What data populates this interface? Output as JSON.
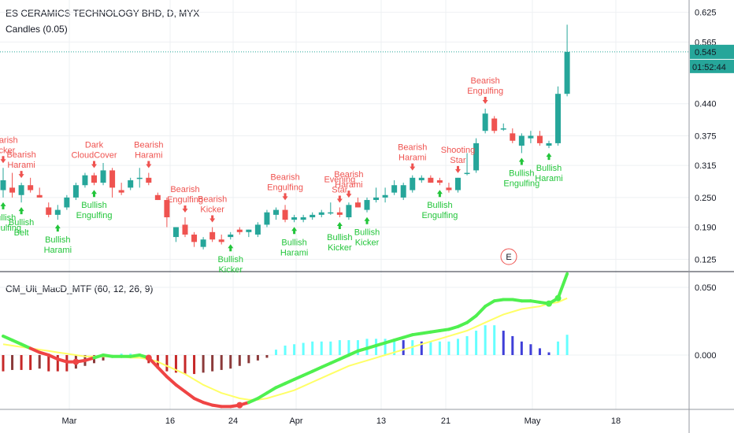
{
  "header": {
    "symbol_title": "ES CERAMICS TECHNOLOGY BHD, D, MYX",
    "study_candles": "Candles (0.05)",
    "study_macd": "CM_Ult_MacD_MTF (60, 12, 26, 9)"
  },
  "price_scale": {
    "ticks": [
      "0.625",
      "0.565",
      "0.440",
      "0.375",
      "0.315",
      "0.250",
      "0.190",
      "0.125"
    ],
    "last_price": "0.545",
    "countdown": "01:52:44"
  },
  "macd_scale": {
    "ticks": [
      "0.050",
      "0.000"
    ]
  },
  "time_axis": {
    "labels": [
      "Mar",
      "16",
      "24",
      "Apr",
      "13",
      "21",
      "May",
      "18"
    ]
  },
  "earnings_marker": "E",
  "colors": {
    "bull": "#26a69a",
    "bear": "#ef5350",
    "pattern_bull": "#22c53a",
    "pattern_bear": "#ef5350",
    "macd_up": "#4ff04f",
    "macd_down": "#ef4444",
    "signal": "#ffff66",
    "hist_cyan": "#66ffff",
    "hist_blue": "#3f3fd8",
    "hist_red": "#c62828",
    "hist_maroon": "#8b3a3a",
    "last_price": "#26a69a"
  },
  "chart_data": [
    {
      "type": "candlestick",
      "title": "ES CERAMICS TECHNOLOGY BHD, D, MYX",
      "ylim": [
        0.1,
        0.65
      ],
      "x_ticks": [
        "Mar",
        "16",
        "24",
        "Apr",
        "13",
        "21",
        "May",
        "18"
      ],
      "candles": [
        {
          "o": 0.265,
          "h": 0.31,
          "l": 0.25,
          "c": 0.285
        },
        {
          "o": 0.27,
          "h": 0.3,
          "l": 0.25,
          "c": 0.26
        },
        {
          "o": 0.255,
          "h": 0.28,
          "l": 0.24,
          "c": 0.275
        },
        {
          "o": 0.275,
          "h": 0.29,
          "l": 0.26,
          "c": 0.265
        },
        {
          "o": 0.255,
          "h": 0.27,
          "l": 0.25,
          "c": 0.25
        },
        {
          "o": 0.23,
          "h": 0.24,
          "l": 0.21,
          "c": 0.215
        },
        {
          "o": 0.215,
          "h": 0.235,
          "l": 0.205,
          "c": 0.225
        },
        {
          "o": 0.23,
          "h": 0.255,
          "l": 0.225,
          "c": 0.25
        },
        {
          "o": 0.25,
          "h": 0.28,
          "l": 0.245,
          "c": 0.275
        },
        {
          "o": 0.275,
          "h": 0.3,
          "l": 0.27,
          "c": 0.295
        },
        {
          "o": 0.295,
          "h": 0.3,
          "l": 0.275,
          "c": 0.28
        },
        {
          "o": 0.28,
          "h": 0.32,
          "l": 0.275,
          "c": 0.305
        },
        {
          "o": 0.305,
          "h": 0.31,
          "l": 0.25,
          "c": 0.27
        },
        {
          "o": 0.265,
          "h": 0.28,
          "l": 0.255,
          "c": 0.26
        },
        {
          "o": 0.27,
          "h": 0.29,
          "l": 0.265,
          "c": 0.285
        },
        {
          "o": 0.29,
          "h": 0.31,
          "l": 0.27,
          "c": 0.29
        },
        {
          "o": 0.29,
          "h": 0.3,
          "l": 0.275,
          "c": 0.28
        },
        {
          "o": 0.255,
          "h": 0.26,
          "l": 0.245,
          "c": 0.245
        },
        {
          "o": 0.245,
          "h": 0.25,
          "l": 0.19,
          "c": 0.21
        },
        {
          "o": 0.17,
          "h": 0.19,
          "l": 0.16,
          "c": 0.19
        },
        {
          "o": 0.195,
          "h": 0.21,
          "l": 0.17,
          "c": 0.175
        },
        {
          "o": 0.175,
          "h": 0.18,
          "l": 0.15,
          "c": 0.16
        },
        {
          "o": 0.15,
          "h": 0.17,
          "l": 0.145,
          "c": 0.165
        },
        {
          "o": 0.18,
          "h": 0.19,
          "l": 0.16,
          "c": 0.165
        },
        {
          "o": 0.165,
          "h": 0.175,
          "l": 0.155,
          "c": 0.16
        },
        {
          "o": 0.17,
          "h": 0.18,
          "l": 0.165,
          "c": 0.175
        },
        {
          "o": 0.185,
          "h": 0.19,
          "l": 0.175,
          "c": 0.18
        },
        {
          "o": 0.18,
          "h": 0.185,
          "l": 0.17,
          "c": 0.185
        },
        {
          "o": 0.175,
          "h": 0.2,
          "l": 0.17,
          "c": 0.195
        },
        {
          "o": 0.195,
          "h": 0.225,
          "l": 0.19,
          "c": 0.22
        },
        {
          "o": 0.215,
          "h": 0.23,
          "l": 0.205,
          "c": 0.225
        },
        {
          "o": 0.225,
          "h": 0.235,
          "l": 0.2,
          "c": 0.205
        },
        {
          "o": 0.205,
          "h": 0.215,
          "l": 0.2,
          "c": 0.21
        },
        {
          "o": 0.205,
          "h": 0.215,
          "l": 0.2,
          "c": 0.21
        },
        {
          "o": 0.21,
          "h": 0.22,
          "l": 0.205,
          "c": 0.215
        },
        {
          "o": 0.215,
          "h": 0.225,
          "l": 0.21,
          "c": 0.22
        },
        {
          "o": 0.22,
          "h": 0.24,
          "l": 0.215,
          "c": 0.22
        },
        {
          "o": 0.22,
          "h": 0.23,
          "l": 0.21,
          "c": 0.215
        },
        {
          "o": 0.21,
          "h": 0.24,
          "l": 0.205,
          "c": 0.235
        },
        {
          "o": 0.24,
          "h": 0.25,
          "l": 0.23,
          "c": 0.23
        },
        {
          "o": 0.225,
          "h": 0.25,
          "l": 0.22,
          "c": 0.245
        },
        {
          "o": 0.245,
          "h": 0.27,
          "l": 0.24,
          "c": 0.25
        },
        {
          "o": 0.25,
          "h": 0.27,
          "l": 0.24,
          "c": 0.255
        },
        {
          "o": 0.26,
          "h": 0.285,
          "l": 0.255,
          "c": 0.275
        },
        {
          "o": 0.25,
          "h": 0.28,
          "l": 0.245,
          "c": 0.275
        },
        {
          "o": 0.265,
          "h": 0.295,
          "l": 0.26,
          "c": 0.29
        },
        {
          "o": 0.285,
          "h": 0.295,
          "l": 0.28,
          "c": 0.29
        },
        {
          "o": 0.29,
          "h": 0.295,
          "l": 0.28,
          "c": 0.28
        },
        {
          "o": 0.285,
          "h": 0.29,
          "l": 0.275,
          "c": 0.28
        },
        {
          "o": 0.27,
          "h": 0.28,
          "l": 0.26,
          "c": 0.265
        },
        {
          "o": 0.265,
          "h": 0.29,
          "l": 0.26,
          "c": 0.29
        },
        {
          "o": 0.3,
          "h": 0.34,
          "l": 0.295,
          "c": 0.3
        },
        {
          "o": 0.305,
          "h": 0.37,
          "l": 0.3,
          "c": 0.36
        },
        {
          "o": 0.385,
          "h": 0.43,
          "l": 0.38,
          "c": 0.42
        },
        {
          "o": 0.41,
          "h": 0.415,
          "l": 0.38,
          "c": 0.385
        },
        {
          "o": 0.39,
          "h": 0.4,
          "l": 0.385,
          "c": 0.39
        },
        {
          "o": 0.38,
          "h": 0.39,
          "l": 0.36,
          "c": 0.365
        },
        {
          "o": 0.355,
          "h": 0.38,
          "l": 0.34,
          "c": 0.375
        },
        {
          "o": 0.37,
          "h": 0.385,
          "l": 0.36,
          "c": 0.375
        },
        {
          "o": 0.375,
          "h": 0.385,
          "l": 0.355,
          "c": 0.36
        },
        {
          "o": 0.355,
          "h": 0.365,
          "l": 0.35,
          "c": 0.36
        },
        {
          "o": 0.36,
          "h": 0.475,
          "l": 0.355,
          "c": 0.46
        },
        {
          "o": 0.46,
          "h": 0.6,
          "l": 0.455,
          "c": 0.545
        }
      ],
      "last_price": 0.545,
      "annotations": [
        {
          "i": 0,
          "side": "above",
          "text": [
            "Bearish",
            "Kicker"
          ],
          "kind": "bear"
        },
        {
          "i": 2,
          "side": "above",
          "text": [
            "Bearish",
            "Harami"
          ],
          "kind": "bear"
        },
        {
          "i": 0,
          "side": "below",
          "text": [
            "Bullish",
            "Engulfing"
          ],
          "kind": "bull"
        },
        {
          "i": 2,
          "side": "below",
          "text": [
            "Bullish",
            "Belt"
          ],
          "kind": "bull"
        },
        {
          "i": 6,
          "side": "below",
          "text": [
            "Bullish",
            "Harami"
          ],
          "kind": "bull"
        },
        {
          "i": 10,
          "side": "above",
          "text": [
            "Dark",
            "CloudCover"
          ],
          "kind": "bear"
        },
        {
          "i": 10,
          "side": "below",
          "text": [
            "Bullish",
            "Engulfing"
          ],
          "kind": "bull"
        },
        {
          "i": 16,
          "side": "above",
          "text": [
            "Bearish",
            "Harami"
          ],
          "kind": "bear"
        },
        {
          "i": 20,
          "side": "above",
          "text": [
            "Bearish",
            "Engulfing"
          ],
          "kind": "bear"
        },
        {
          "i": 23,
          "side": "above",
          "text": [
            "Bearish",
            "Kicker"
          ],
          "kind": "bear"
        },
        {
          "i": 25,
          "side": "below",
          "text": [
            "Bullish",
            "Kicker"
          ],
          "kind": "bull"
        },
        {
          "i": 31,
          "side": "above",
          "text": [
            "Bearish",
            "Engulfing"
          ],
          "kind": "bear"
        },
        {
          "i": 32,
          "side": "below",
          "text": [
            "Bullish",
            "Harami"
          ],
          "kind": "bull"
        },
        {
          "i": 37,
          "side": "above",
          "text": [
            "Evening",
            "Star"
          ],
          "kind": "bear"
        },
        {
          "i": 38,
          "side": "above",
          "text": [
            "Bearish",
            "Harami"
          ],
          "kind": "bear"
        },
        {
          "i": 37,
          "side": "below",
          "text": [
            "Bullish",
            "Kicker"
          ],
          "kind": "bull"
        },
        {
          "i": 40,
          "side": "below",
          "text": [
            "Bullish",
            "Kicker"
          ],
          "kind": "bull"
        },
        {
          "i": 45,
          "side": "above",
          "text": [
            "Bearish",
            "Harami"
          ],
          "kind": "bear"
        },
        {
          "i": 48,
          "side": "below",
          "text": [
            "Bullish",
            "Engulfing"
          ],
          "kind": "bull"
        },
        {
          "i": 50,
          "side": "above",
          "text": [
            "Shooting",
            "Star"
          ],
          "kind": "bear"
        },
        {
          "i": 53,
          "side": "above",
          "text": [
            "Bearish",
            "Engulfing"
          ],
          "kind": "bear"
        },
        {
          "i": 57,
          "side": "below",
          "text": [
            "Bullish",
            "Engulfing"
          ],
          "kind": "bull"
        },
        {
          "i": 60,
          "side": "below",
          "text": [
            "Bullish",
            "Harami"
          ],
          "kind": "bull"
        }
      ]
    },
    {
      "type": "line",
      "title": "CM_Ult_MacD_MTF (60, 12, 26, 9)",
      "ylim": [
        -0.045,
        0.068
      ],
      "x_ticks": [
        "Mar",
        "16",
        "24",
        "Apr",
        "13",
        "21",
        "May",
        "18"
      ],
      "macd": [
        0.014,
        0.011,
        0.008,
        0.005,
        0.002,
        0.0,
        -0.003,
        -0.005,
        -0.005,
        -0.004,
        -0.002,
        0.0,
        -0.001,
        -0.001,
        -0.001,
        0.0,
        -0.002,
        -0.009,
        -0.016,
        -0.022,
        -0.027,
        -0.032,
        -0.035,
        -0.037,
        -0.038,
        -0.038,
        -0.037,
        -0.035,
        -0.032,
        -0.028,
        -0.024,
        -0.021,
        -0.018,
        -0.015,
        -0.012,
        -0.009,
        -0.006,
        -0.003,
        0.0,
        0.003,
        0.005,
        0.007,
        0.009,
        0.011,
        0.013,
        0.015,
        0.016,
        0.017,
        0.018,
        0.019,
        0.021,
        0.024,
        0.029,
        0.036,
        0.04,
        0.041,
        0.041,
        0.04,
        0.04,
        0.039,
        0.038,
        0.042,
        0.06
      ],
      "signal": [
        0.008,
        0.007,
        0.006,
        0.005,
        0.004,
        0.003,
        0.002,
        0.001,
        0.0,
        -0.001,
        -0.001,
        -0.001,
        -0.001,
        -0.001,
        -0.002,
        -0.002,
        -0.003,
        -0.005,
        -0.008,
        -0.011,
        -0.014,
        -0.018,
        -0.022,
        -0.025,
        -0.028,
        -0.03,
        -0.032,
        -0.033,
        -0.033,
        -0.032,
        -0.03,
        -0.028,
        -0.026,
        -0.023,
        -0.02,
        -0.017,
        -0.014,
        -0.011,
        -0.008,
        -0.006,
        -0.004,
        -0.002,
        0.0,
        0.002,
        0.004,
        0.006,
        0.008,
        0.01,
        0.012,
        0.014,
        0.016,
        0.018,
        0.021,
        0.024,
        0.027,
        0.03,
        0.032,
        0.034,
        0.035,
        0.036,
        0.038,
        0.039,
        0.042
      ],
      "histogram": [
        -0.012,
        -0.011,
        -0.011,
        -0.011,
        -0.01,
        -0.012,
        -0.012,
        -0.012,
        -0.01,
        -0.008,
        -0.006,
        -0.004,
        -0.002,
        0.001,
        0.001,
        0.001,
        -0.006,
        -0.01,
        -0.012,
        -0.013,
        -0.014,
        -0.014,
        -0.013,
        -0.012,
        -0.011,
        -0.01,
        -0.008,
        -0.006,
        -0.004,
        -0.002,
        0.004,
        0.007,
        0.008,
        0.009,
        0.01,
        0.01,
        0.01,
        0.011,
        0.011,
        0.011,
        0.012,
        0.012,
        0.012,
        0.012,
        0.011,
        0.011,
        0.01,
        0.01,
        0.01,
        0.01,
        0.012,
        0.014,
        0.018,
        0.022,
        0.022,
        0.018,
        0.014,
        0.01,
        0.008,
        0.005,
        0.002,
        0.01,
        0.015
      ],
      "crosses": [
        8,
        16,
        26,
        60,
        61
      ]
    }
  ]
}
